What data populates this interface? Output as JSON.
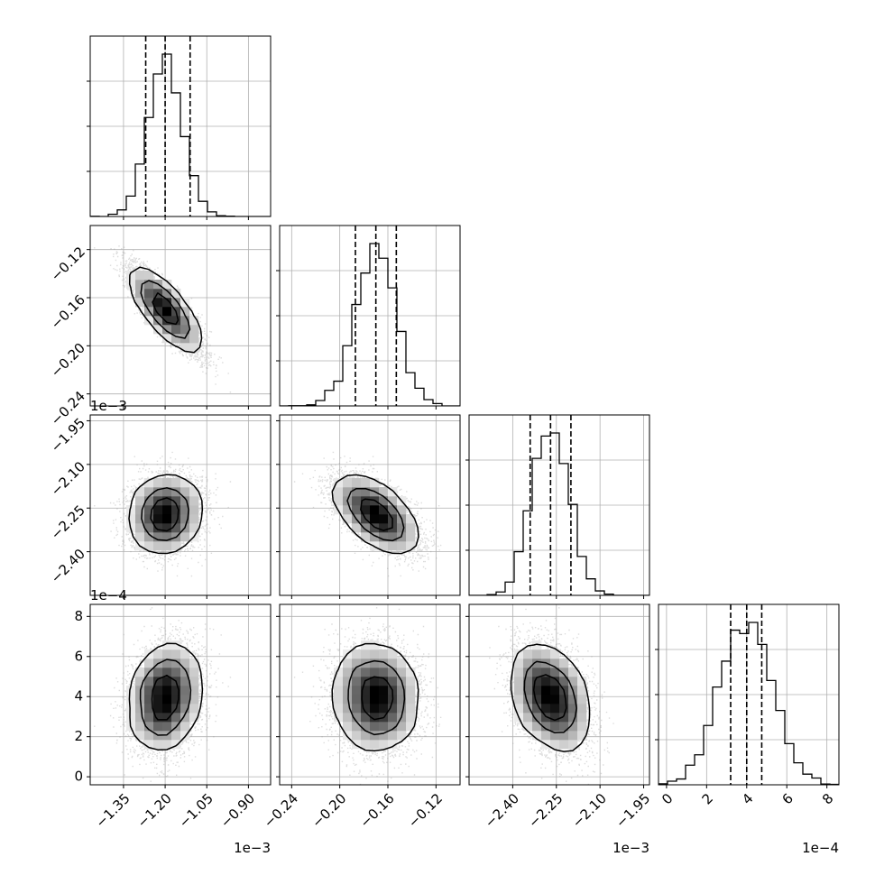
{
  "chart_data": {
    "type": "corner",
    "title": "",
    "parameters": [
      {
        "range": [
          -1.47,
          -0.82
        ],
        "ticks": [
          -1.35,
          -1.2,
          -1.05,
          -0.9
        ],
        "tick_labels": [
          "−1.35",
          "−1.20",
          "−1.05",
          "−0.90"
        ],
        "offset": "1e−3",
        "mean": -1.2,
        "sd": 0.062,
        "quantiles": [
          -1.27,
          -1.2,
          -1.11
        ]
      },
      {
        "range": [
          -0.25,
          -0.1
        ],
        "ticks": [
          -0.24,
          -0.2,
          -0.16,
          -0.12
        ],
        "tick_labels": [
          "−0.24",
          "−0.20",
          "−0.16",
          "−0.12"
        ],
        "offset": "",
        "mean": -0.17,
        "sd": 0.017,
        "quantiles": [
          -0.187,
          -0.17,
          -0.153
        ]
      },
      {
        "range": [
          -2.55,
          -1.93
        ],
        "ticks": [
          -2.4,
          -2.25,
          -2.1,
          -1.95
        ],
        "tick_labels": [
          "−2.40",
          "−2.25",
          "−2.10",
          "−1.95"
        ],
        "offset": "1e−3",
        "mean": -2.27,
        "sd": 0.062,
        "quantiles": [
          -2.34,
          -2.27,
          -2.2
        ]
      },
      {
        "range": [
          -0.4,
          8.6
        ],
        "ticks": [
          0,
          2,
          4,
          6,
          8
        ],
        "tick_labels": [
          "0",
          "2",
          "4",
          "6",
          "8"
        ],
        "offset": "1e−4",
        "mean": 4.0,
        "sd": 0.8,
        "quantiles": [
          3.2,
          4.0,
          4.75
        ]
      }
    ],
    "correlations": [
      [
        1,
        -0.85,
        0.1,
        0.3
      ],
      [
        -0.85,
        1,
        -0.6,
        -0.1
      ],
      [
        0.1,
        -0.6,
        1,
        -0.55
      ],
      [
        0.3,
        -0.1,
        -0.55,
        1
      ]
    ],
    "row_offsets": [
      "",
      "",
      "1e−3",
      "1e−4"
    ],
    "histogram_bins": 20,
    "grid": true,
    "colors": {
      "line": "#000000",
      "grid": "#b0b0b0",
      "scatter": "#9a9a9a"
    }
  }
}
